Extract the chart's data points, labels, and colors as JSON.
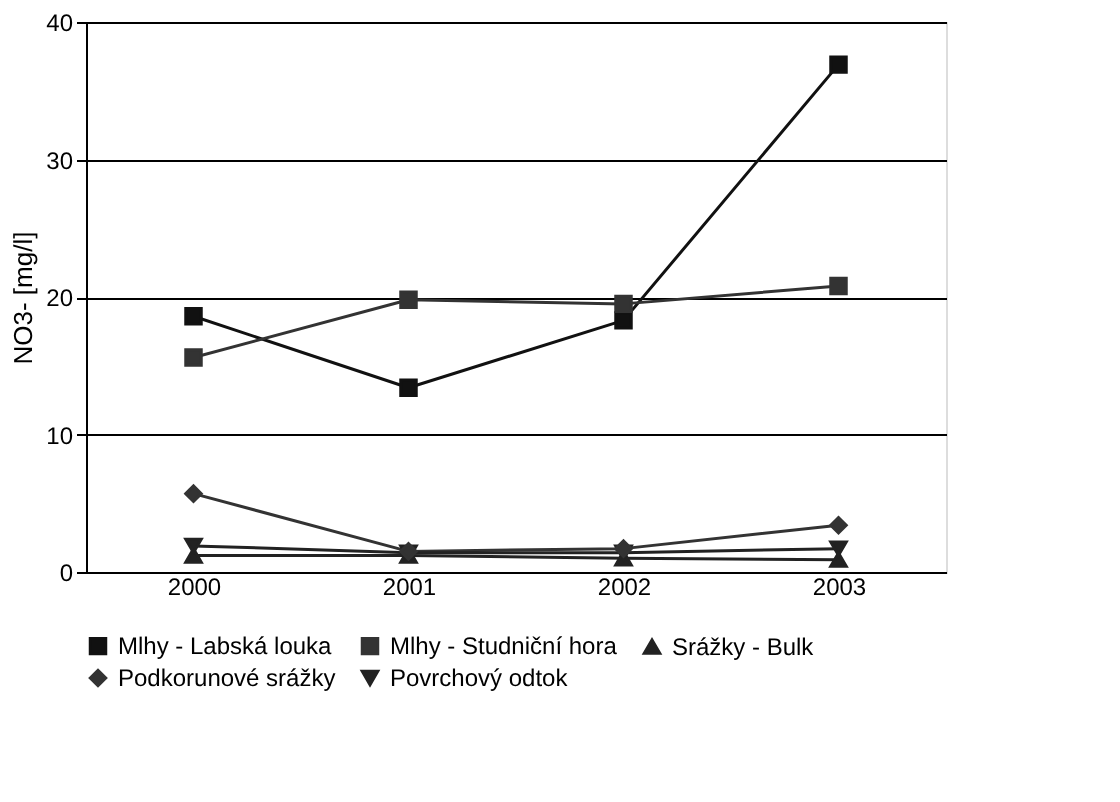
{
  "chart_data": {
    "type": "line",
    "ylabel": "NO3- [mg/l]",
    "categories": [
      "2000",
      "2001",
      "2002",
      "2003"
    ],
    "ylim": [
      0,
      40
    ],
    "yticks": [
      0,
      10,
      20,
      30,
      40
    ],
    "grid": "y",
    "legend": "bottom",
    "line_style": "solid",
    "series": [
      {
        "name": "Mlhy - Labská louka",
        "color": "#111111",
        "marker": "square",
        "values": [
          18.6,
          13.4,
          18.3,
          36.9
        ]
      },
      {
        "name": "Mlhy - Studniční hora",
        "color": "#333333",
        "marker": "square",
        "values": [
          15.6,
          19.8,
          19.5,
          20.8
        ]
      },
      {
        "name": "Srážky - Bulk",
        "color": "#222222",
        "marker": "triangle",
        "values": [
          1.2,
          1.2,
          1.0,
          0.9
        ]
      },
      {
        "name": "Podkorunové srážky",
        "color": "#333333",
        "marker": "diamond",
        "values": [
          5.7,
          1.5,
          1.7,
          3.4
        ]
      },
      {
        "name": "Povrchový odtok",
        "color": "#222222",
        "marker": "triangle-down",
        "values": [
          1.9,
          1.4,
          1.4,
          1.7
        ]
      }
    ]
  }
}
